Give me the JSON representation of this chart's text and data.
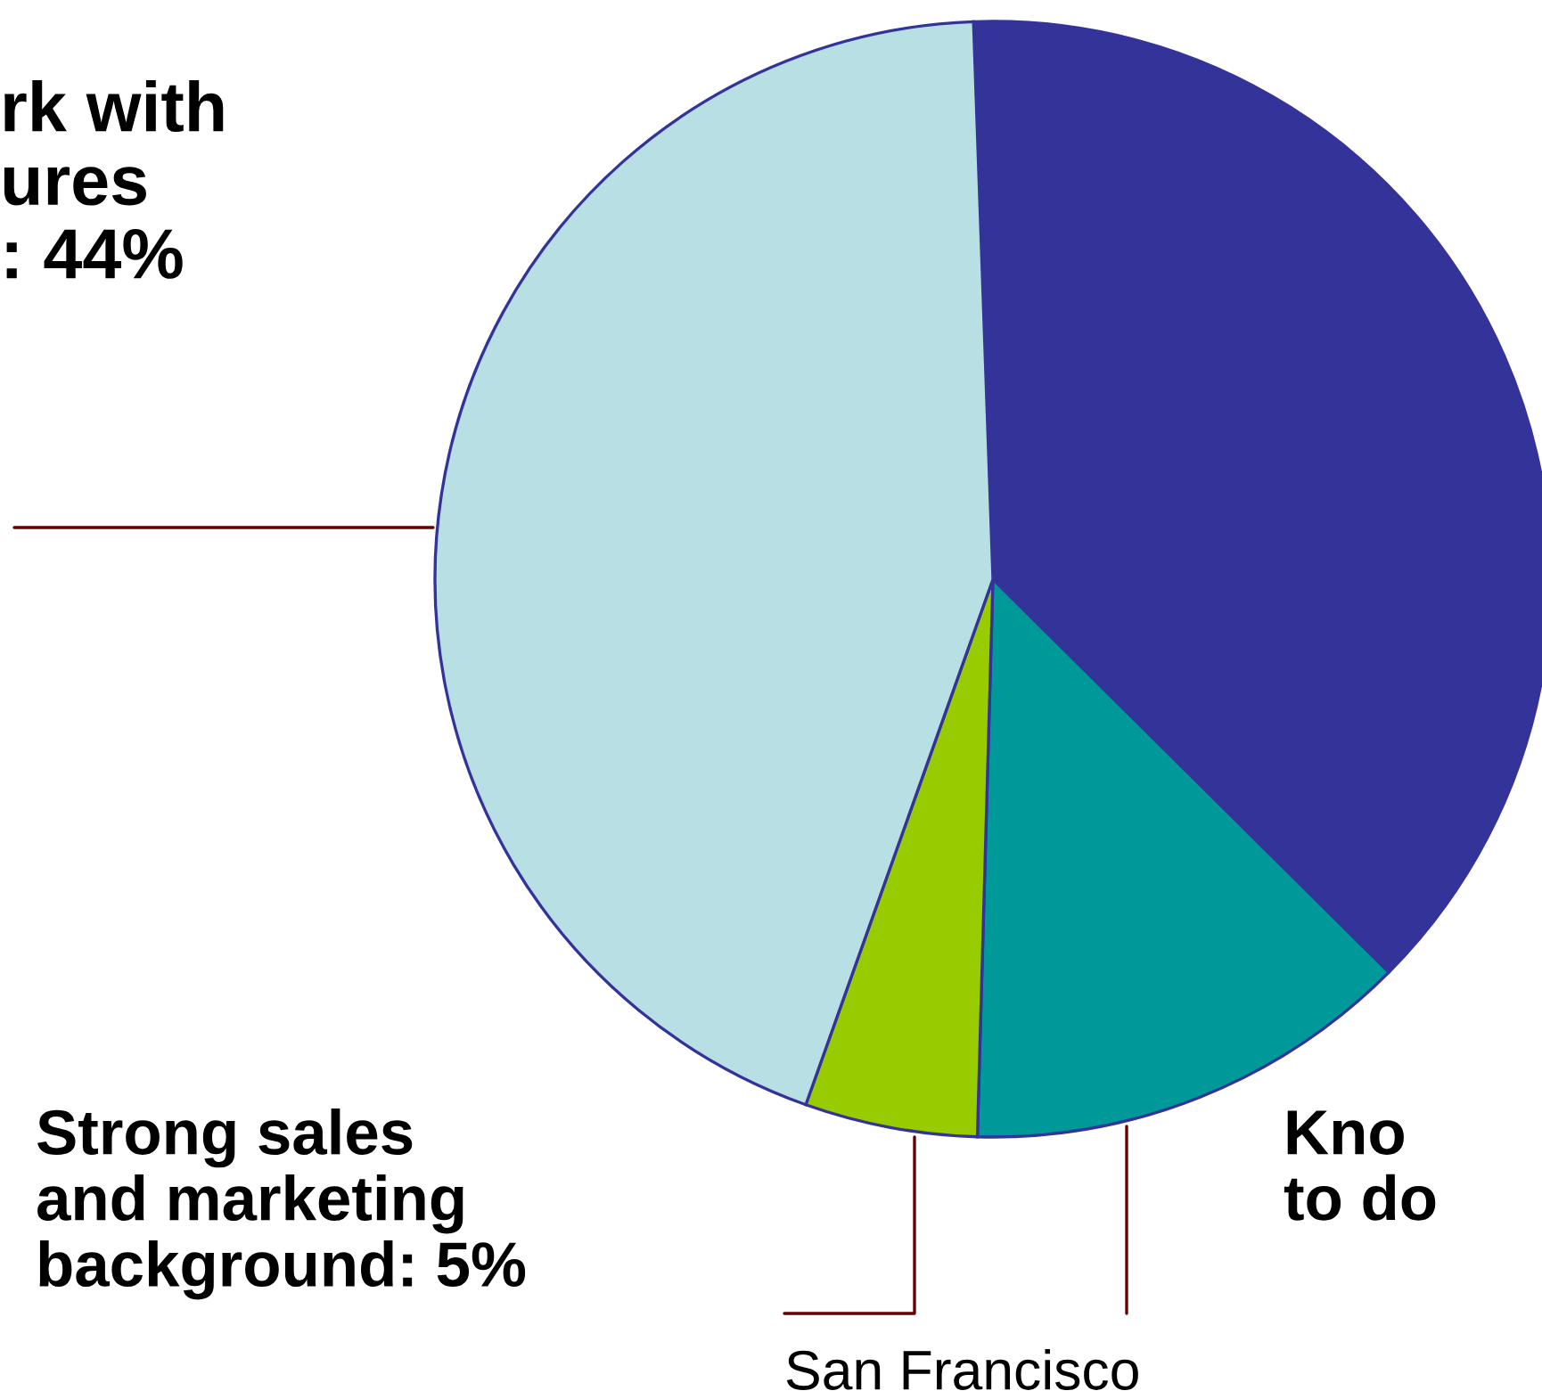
{
  "chart_data": {
    "type": "pie",
    "categories": [
      null,
      null,
      null,
      null
    ],
    "values": [
      38,
      13,
      5,
      44
    ],
    "colors": [
      "#333399",
      "#009999",
      "#99cc00",
      "#b8dfe3"
    ],
    "annotations": [
      "rk with\nures\n: 44%",
      "Strong sales\nand marketing\nbackground: 5%",
      "Kno\nto do",
      "San Francisco"
    ]
  }
}
